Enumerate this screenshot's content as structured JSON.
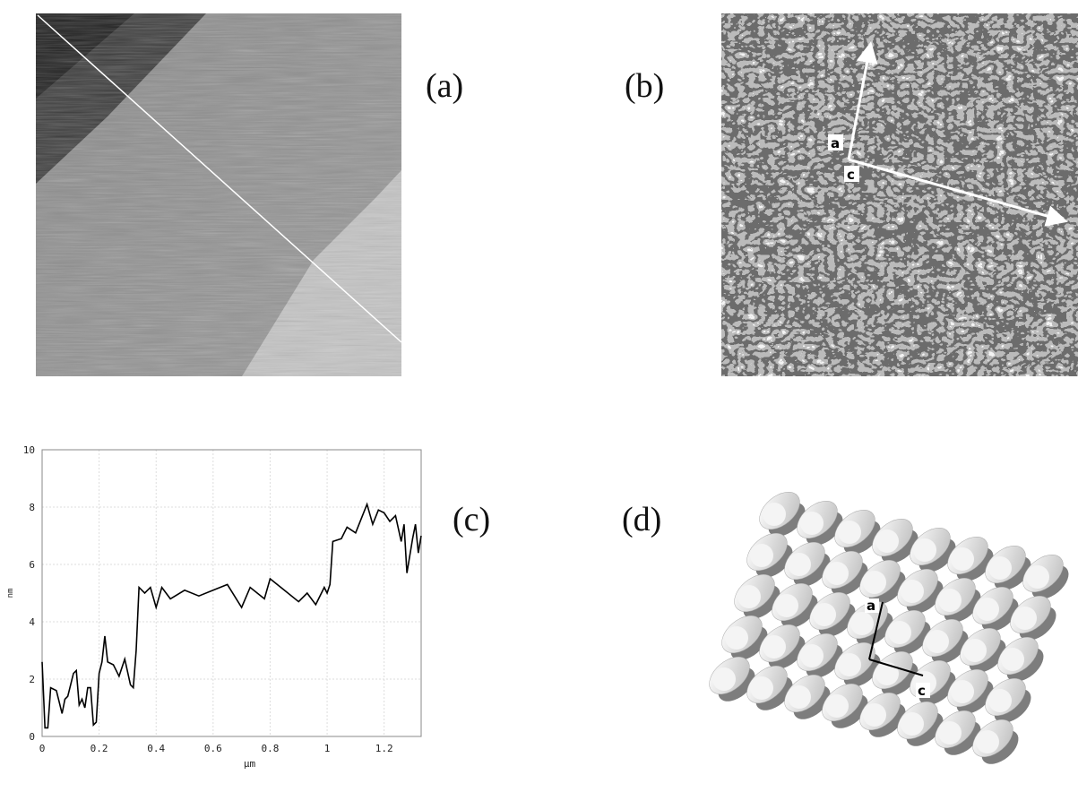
{
  "panels": {
    "a": "(a)",
    "b": "(b)",
    "c": "(c)",
    "d": "(d)"
  },
  "annotations": {
    "b_a": "a",
    "b_c": "c",
    "d_a": "a",
    "d_c": "c"
  },
  "chart_data": {
    "type": "line",
    "xlabel": "μm",
    "ylabel": "nm",
    "color": "#000000",
    "grid": true,
    "xlim": [
      0,
      1.33
    ],
    "ylim": [
      0,
      10
    ],
    "xticks": [
      0,
      0.2,
      0.4,
      0.6,
      0.8,
      1.0,
      1.2
    ],
    "yticks": [
      0,
      2,
      4,
      6,
      8,
      10
    ],
    "x": [
      0,
      0.01,
      0.02,
      0.03,
      0.05,
      0.06,
      0.07,
      0.08,
      0.09,
      0.1,
      0.11,
      0.12,
      0.13,
      0.14,
      0.15,
      0.16,
      0.17,
      0.18,
      0.19,
      0.2,
      0.21,
      0.22,
      0.23,
      0.25,
      0.27,
      0.29,
      0.31,
      0.32,
      0.33,
      0.34,
      0.36,
      0.38,
      0.4,
      0.42,
      0.45,
      0.5,
      0.55,
      0.6,
      0.65,
      0.7,
      0.73,
      0.78,
      0.8,
      0.85,
      0.9,
      0.93,
      0.96,
      0.99,
      1.0,
      1.01,
      1.02,
      1.05,
      1.07,
      1.1,
      1.12,
      1.14,
      1.16,
      1.18,
      1.2,
      1.22,
      1.24,
      1.26,
      1.27,
      1.28,
      1.3,
      1.31,
      1.32,
      1.33
    ],
    "values": [
      2.6,
      0.3,
      0.3,
      1.7,
      1.6,
      1.2,
      0.8,
      1.3,
      1.4,
      1.8,
      2.2,
      2.3,
      1.1,
      1.3,
      1.0,
      1.7,
      1.7,
      0.4,
      0.5,
      2.2,
      2.6,
      3.5,
      2.6,
      2.5,
      2.1,
      2.7,
      1.8,
      1.7,
      3.0,
      5.2,
      5.0,
      5.2,
      4.5,
      5.2,
      4.8,
      5.1,
      4.9,
      5.1,
      5.3,
      4.5,
      5.2,
      4.8,
      5.5,
      5.1,
      4.7,
      5.0,
      4.6,
      5.2,
      5.0,
      5.3,
      6.8,
      6.9,
      7.3,
      7.1,
      7.6,
      8.1,
      7.4,
      7.9,
      7.8,
      7.5,
      7.7,
      6.8,
      7.4,
      5.7,
      6.9,
      7.4,
      6.4,
      7.0
    ]
  }
}
